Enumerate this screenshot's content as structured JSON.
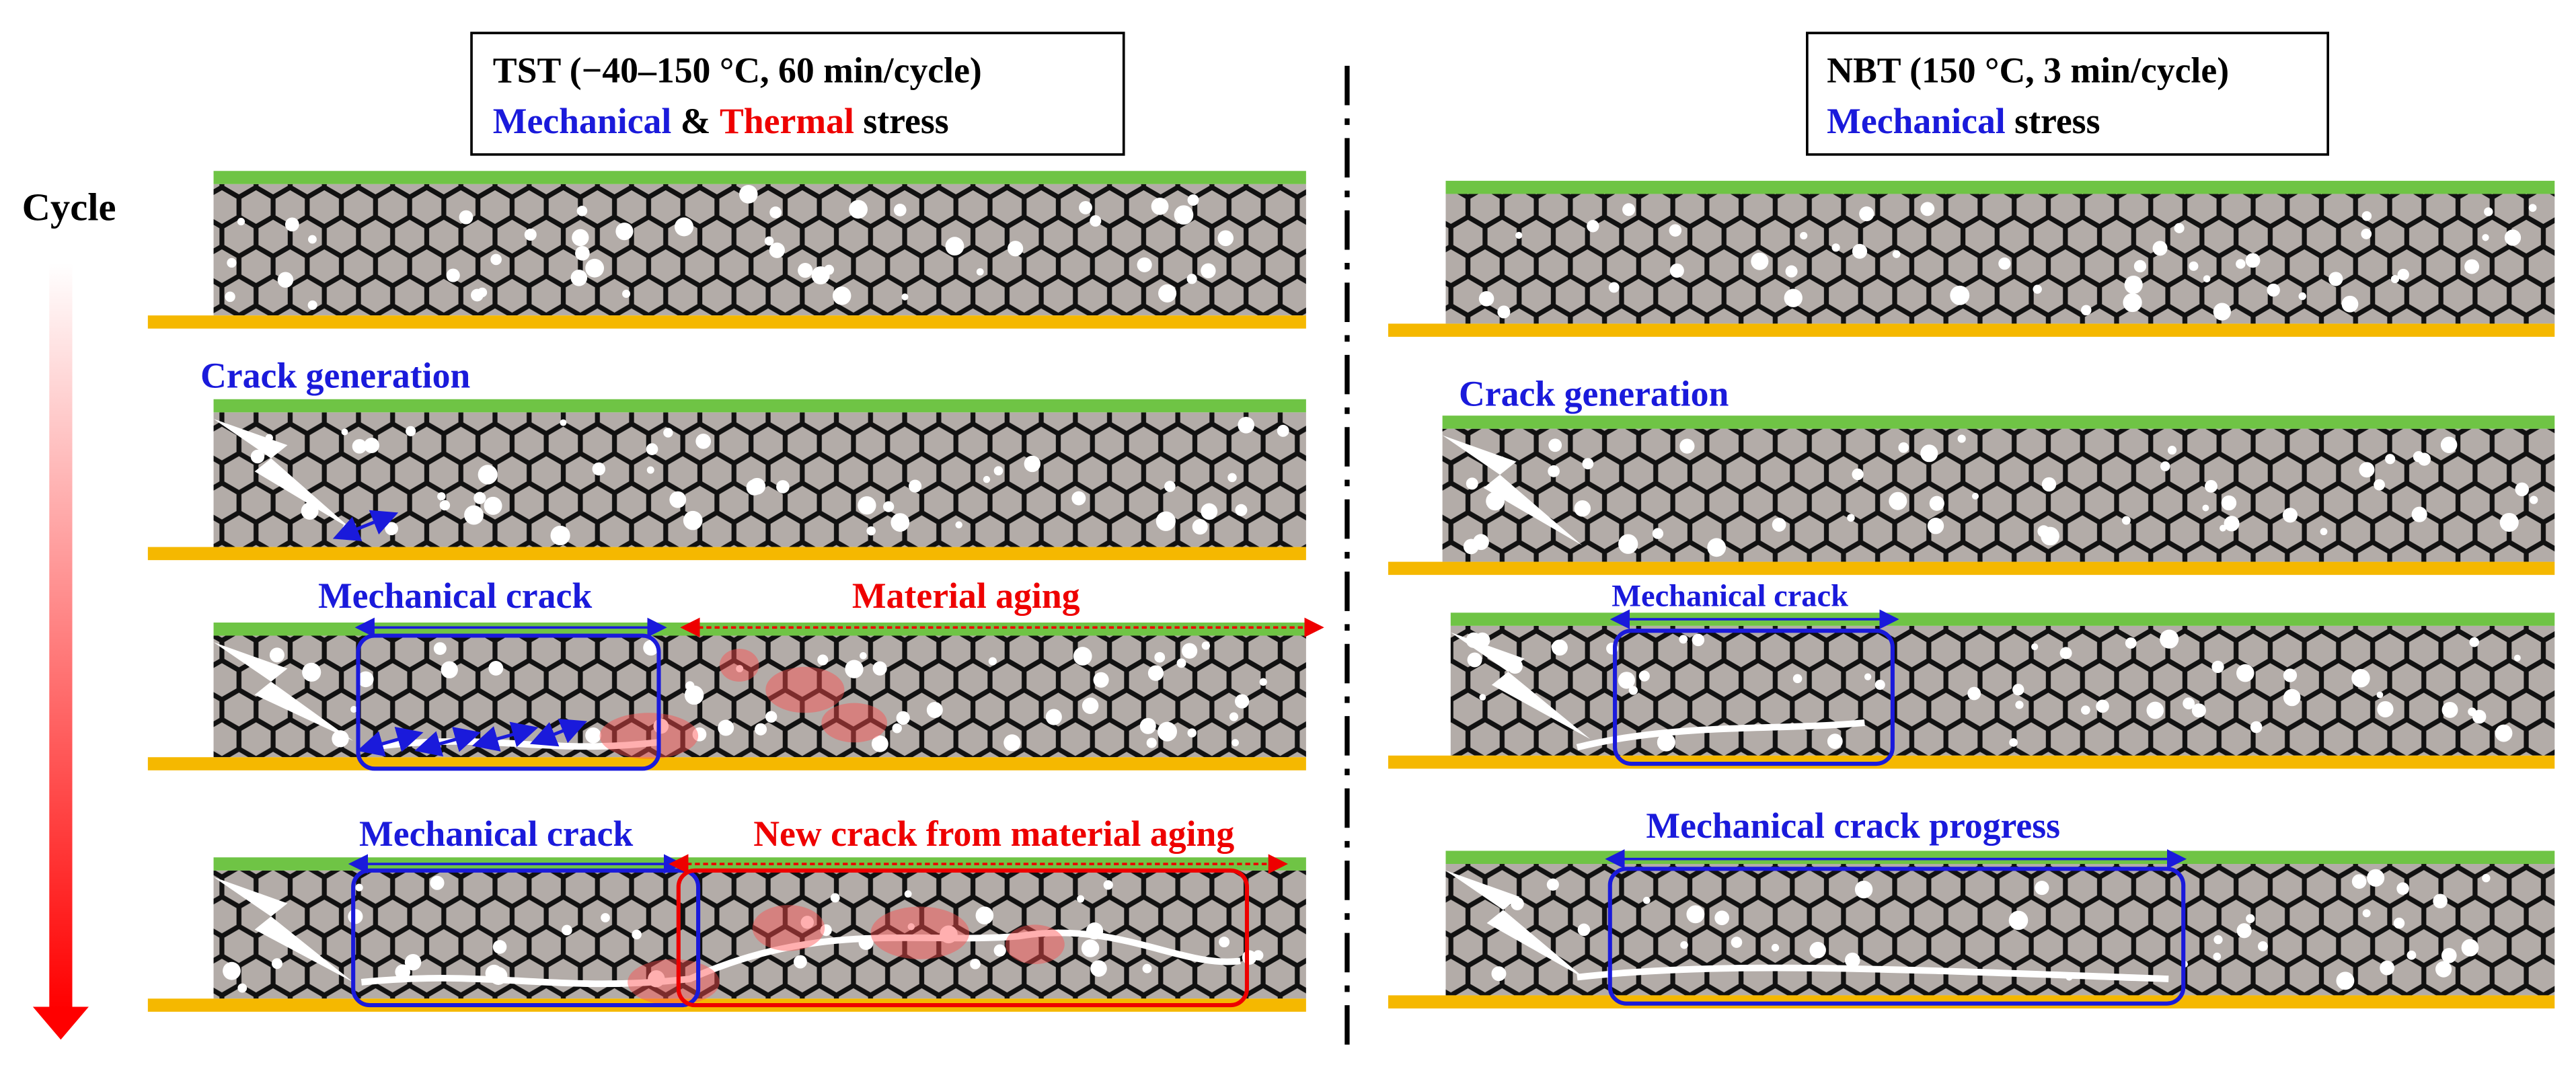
{
  "cycle_label": "Cycle",
  "left": {
    "header": {
      "line1": "TST (−40–150 °C, 60 min/cycle)",
      "line2": [
        "Mechanical",
        "&",
        "Thermal",
        "stress"
      ]
    },
    "labels": [
      "Crack generation",
      "Mechanical crack",
      "Material aging",
      "Mechanical crack",
      "New crack from material aging"
    ]
  },
  "right": {
    "header": {
      "line1": "NBT (150 °C, 3 min/cycle)",
      "line2": [
        "Mechanical",
        "stress"
      ]
    },
    "labels": [
      "Crack generation",
      "Mechanical crack",
      "Mechanical crack progress"
    ]
  }
}
